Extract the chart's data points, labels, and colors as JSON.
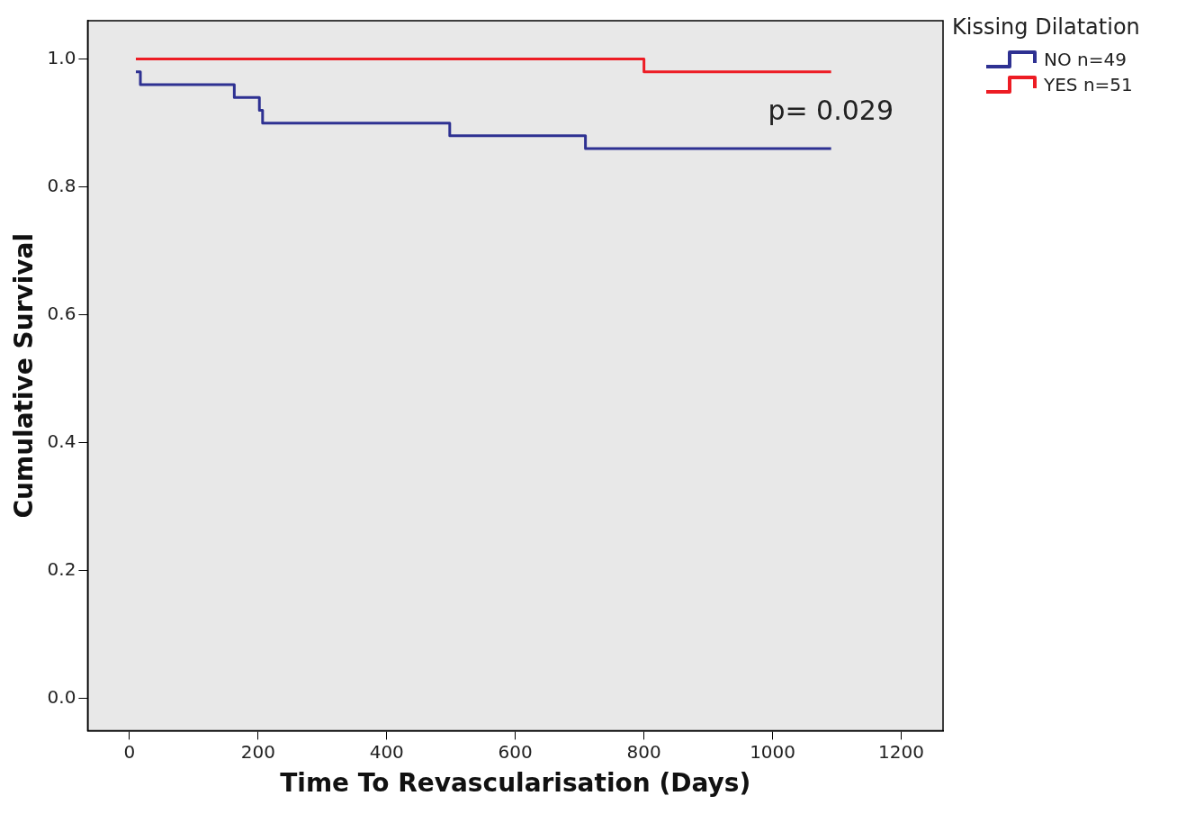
{
  "chart_data": {
    "type": "step",
    "xlabel": "Time To Revascularisation (Days)",
    "ylabel": "Cumulative Survival",
    "legend_title": "Kissing Dilatation",
    "legend": "right",
    "grid": false,
    "marker": "none",
    "xlim": [
      -65,
      1265
    ],
    "xticks": [
      0,
      200,
      400,
      600,
      800,
      1000,
      1200
    ],
    "ylim": [
      -0.05,
      1.06
    ],
    "yticks": [
      {
        "value": 0,
        "label": "0.0"
      },
      {
        "value": 0.2,
        "label": "0.2"
      },
      {
        "value": 0.4,
        "label": "0.4"
      },
      {
        "value": 0.6,
        "label": "0.6"
      },
      {
        "value": 0.8,
        "label": "0.8"
      },
      {
        "value": 1,
        "label": "1.0"
      }
    ],
    "annotations": [
      "p= 0.029"
    ],
    "series": [
      {
        "name": "NO n=49",
        "color": "#2e3192",
        "x": [
          10,
          17,
          163,
          202,
          207,
          498,
          709,
          1091
        ],
        "values": [
          0.98,
          0.96,
          0.94,
          0.92,
          0.9,
          0.88,
          0.86,
          0.86
        ]
      },
      {
        "name": "YES n=51",
        "color": "#ed1c24",
        "x": [
          10,
          800,
          1091
        ],
        "values": [
          1,
          0.98,
          0.98
        ]
      }
    ]
  }
}
